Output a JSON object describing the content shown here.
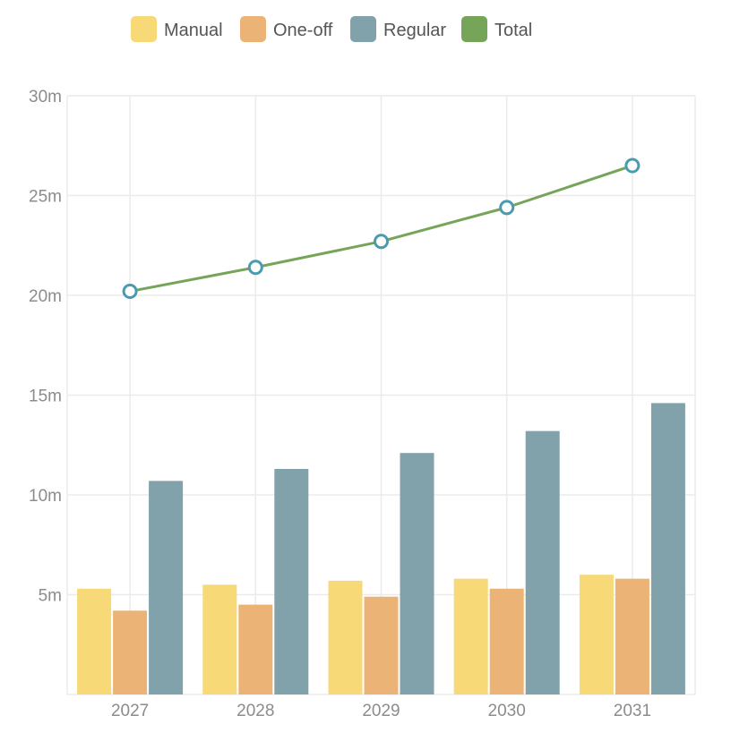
{
  "chart_data": {
    "type": "bar",
    "title": "",
    "xlabel": "",
    "ylabel": "",
    "categories": [
      "2027",
      "2028",
      "2029",
      "2030",
      "2031"
    ],
    "ylim": [
      0,
      30
    ],
    "yticks": [
      5,
      10,
      15,
      20,
      25,
      30
    ],
    "ytick_labels": [
      "5m",
      "10m",
      "15m",
      "20m",
      "25m",
      "30m"
    ],
    "grid": true,
    "legend_position": "top",
    "series": [
      {
        "name": "Manual",
        "kind": "bar",
        "color": "#f8d978",
        "values": [
          5.3,
          5.5,
          5.7,
          5.8,
          6.0
        ]
      },
      {
        "name": "One-off",
        "kind": "bar",
        "color": "#ebb375",
        "values": [
          4.2,
          4.5,
          4.9,
          5.3,
          5.8
        ]
      },
      {
        "name": "Regular",
        "kind": "bar",
        "color": "#81a2aa",
        "values": [
          10.7,
          11.3,
          12.1,
          13.2,
          14.6
        ]
      },
      {
        "name": "Total",
        "kind": "line",
        "color": "#76a55a",
        "marker_color": "#4a9bb0",
        "values": [
          20.2,
          21.4,
          22.7,
          24.4,
          26.5
        ]
      }
    ]
  }
}
